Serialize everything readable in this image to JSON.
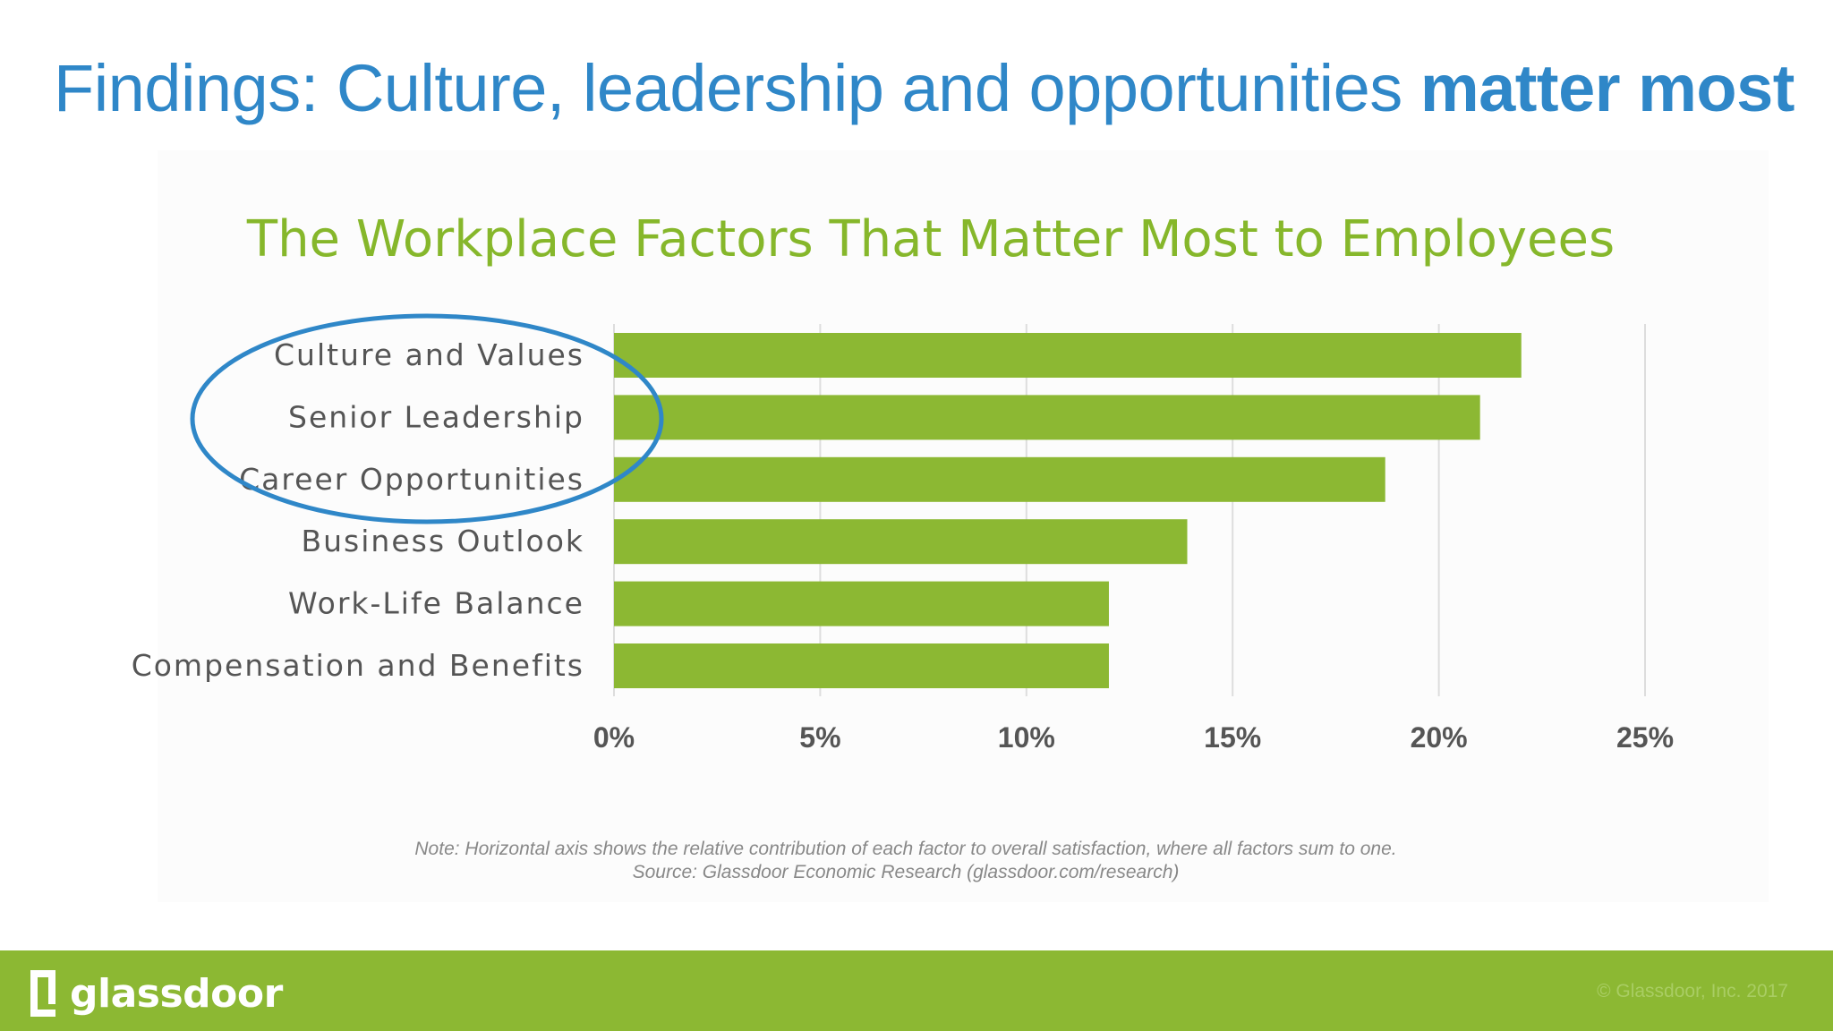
{
  "slide": {
    "title_plain": "Findings: Culture, leadership and opportunities ",
    "title_emphasis": "matter most",
    "title_color": "#2f87c8"
  },
  "chart_data": {
    "type": "bar",
    "orientation": "horizontal",
    "title": "The Workplace Factors That Matter Most to Employees",
    "categories": [
      "Culture and Values",
      "Senior Leadership",
      "Career Opportunities",
      "Business Outlook",
      "Work-Life Balance",
      "Compensation and Benefits"
    ],
    "values": [
      22.0,
      21.0,
      18.7,
      13.9,
      12.0,
      12.0
    ],
    "unit": "%",
    "xlim": [
      0,
      25
    ],
    "x_ticks": [
      "0%",
      "5%",
      "10%",
      "15%",
      "20%",
      "25%"
    ],
    "grid": "vertical",
    "legend": "none",
    "bar_color": "#8cb833",
    "title_color": "#86b72b",
    "highlight": {
      "shape": "ellipse",
      "color": "#2f87c8",
      "categories": [
        "Culture and Values",
        "Senior Leadership",
        "Career Opportunities"
      ]
    },
    "notes": [
      "Note: Horizontal axis shows the relative contribution of each factor to overall satisfaction, where all factors sum to one.",
      "Source: Glassdoor Economic Research (glassdoor.com/research)"
    ]
  },
  "footer": {
    "logo_text": "glassdoor",
    "logo_icon": "glassdoor-logo-icon",
    "copyright": "© Glassdoor, Inc. 2017",
    "background": "#8cb833"
  }
}
